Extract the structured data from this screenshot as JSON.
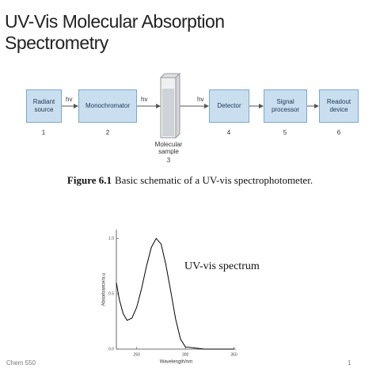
{
  "header": {
    "title": "UV-Vis Molecular Absorption Spectrometry"
  },
  "diagram": {
    "nodes": [
      {
        "label": "Radiant source",
        "number": "1"
      },
      {
        "label": "Monochromator",
        "number": "2"
      },
      {
        "label": "Molecular sample",
        "number": "3"
      },
      {
        "label": "Detector",
        "number": "4"
      },
      {
        "label": "Signal processor",
        "number": "5"
      },
      {
        "label": "Readout device",
        "number": "6"
      }
    ],
    "arrow_labels": [
      "hv",
      "hv",
      "hv"
    ],
    "caption_label": "Figure 6.1",
    "caption_text": "Basic schematic of a UV-vis spectrophotometer."
  },
  "chart_data": {
    "type": "line",
    "annotation": "UV-vis spectrum",
    "x_label": "Wavelength/nm",
    "y_label": "Absorbance/a.u",
    "x": [
      229,
      232,
      236,
      240,
      245,
      250,
      255,
      260,
      265,
      270,
      275,
      280,
      285,
      290,
      295,
      300,
      310,
      320,
      330,
      340,
      350
    ],
    "values": [
      0.6,
      0.45,
      0.32,
      0.26,
      0.28,
      0.38,
      0.55,
      0.75,
      0.92,
      1.0,
      0.95,
      0.76,
      0.52,
      0.27,
      0.09,
      0.02,
      0.01,
      0.0,
      0.0,
      0.0,
      0.0
    ],
    "color": "#000000",
    "xlim": [
      229,
      352
    ],
    "ylim": [
      0,
      1.08
    ],
    "xticks": [
      250,
      300,
      350
    ],
    "yticks": [
      {
        "value": 0,
        "label": "0.0"
      },
      0.5,
      {
        "value": 1,
        "label": "1.0"
      }
    ]
  },
  "footer": {
    "course": "Chem 550",
    "page": "1"
  }
}
